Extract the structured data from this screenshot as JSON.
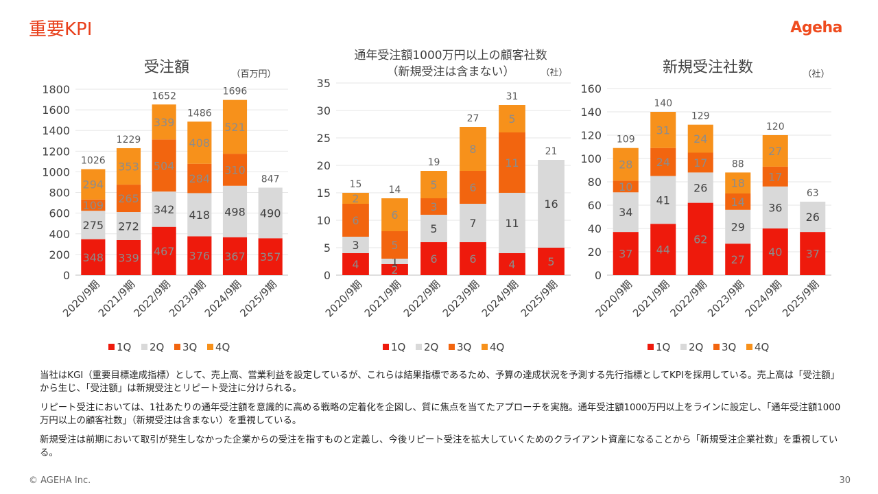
{
  "header": {
    "title": "重要KPI",
    "logo_text": "Ageha"
  },
  "colors": {
    "q1": "#ee1a0c",
    "q2": "#d9d9d9",
    "q3": "#f2650f",
    "q4": "#f7911b",
    "title": "#e8401c"
  },
  "legend": [
    "1Q",
    "2Q",
    "3Q",
    "4Q"
  ],
  "chart_data": [
    {
      "type": "bar",
      "stacked": true,
      "title": "受注額",
      "unit": "（百万円）",
      "categories": [
        "2020/9期",
        "2021/9期",
        "2022/9期",
        "2023/9期",
        "2024/9期",
        "2025/9期"
      ],
      "ylim": [
        0,
        1800
      ],
      "yticks": [
        0,
        200,
        400,
        600,
        800,
        1000,
        1200,
        1400,
        1600,
        1800
      ],
      "series": [
        {
          "name": "1Q",
          "values": [
            348,
            339,
            467,
            376,
            367,
            357
          ]
        },
        {
          "name": "2Q",
          "values": [
            275,
            272,
            342,
            418,
            498,
            490
          ]
        },
        {
          "name": "3Q",
          "values": [
            109,
            265,
            504,
            284,
            310,
            null
          ]
        },
        {
          "name": "4Q",
          "values": [
            294,
            353,
            339,
            408,
            521,
            null
          ]
        }
      ],
      "totals": [
        1026,
        1229,
        1652,
        1486,
        1696,
        847
      ]
    },
    {
      "type": "bar",
      "stacked": true,
      "title": "通年受注額1000万円以上の顧客社数",
      "subtitle": "（新規受注は含まない）",
      "unit": "（社）",
      "categories": [
        "2020/9期",
        "2021/9期",
        "2022/9期",
        "2023/9期",
        "2024/9期",
        "2025/9期"
      ],
      "ylim": [
        0,
        35
      ],
      "yticks": [
        0,
        5,
        10,
        15,
        20,
        25,
        30,
        35
      ],
      "series": [
        {
          "name": "1Q",
          "values": [
            4,
            2,
            6,
            6,
            4,
            5
          ]
        },
        {
          "name": "2Q",
          "values": [
            3,
            1,
            5,
            7,
            11,
            16
          ]
        },
        {
          "name": "3Q",
          "values": [
            6,
            5,
            3,
            6,
            11,
            null
          ]
        },
        {
          "name": "4Q",
          "values": [
            2,
            6,
            5,
            8,
            5,
            null
          ]
        }
      ],
      "totals": [
        15,
        14,
        19,
        27,
        31,
        21
      ]
    },
    {
      "type": "bar",
      "stacked": true,
      "title": "新規受注社数",
      "unit": "（社）",
      "categories": [
        "2020/9期",
        "2021/9期",
        "2022/9期",
        "2023/9期",
        "2024/9期",
        "2025/9期"
      ],
      "ylim": [
        0,
        160
      ],
      "yticks": [
        0,
        20,
        40,
        60,
        80,
        100,
        120,
        140,
        160
      ],
      "series": [
        {
          "name": "1Q",
          "values": [
            37,
            44,
            62,
            27,
            40,
            37
          ]
        },
        {
          "name": "2Q",
          "values": [
            34,
            41,
            26,
            29,
            36,
            26
          ]
        },
        {
          "name": "3Q",
          "values": [
            10,
            24,
            17,
            14,
            17,
            null
          ]
        },
        {
          "name": "4Q",
          "values": [
            28,
            31,
            24,
            18,
            27,
            null
          ]
        }
      ],
      "totals": [
        109,
        140,
        129,
        88,
        120,
        63
      ]
    }
  ],
  "paragraphs": [
    "当社はKGI（重要目標達成指標）として、売上高、営業利益を設定しているが、これらは結果指標であるため、予算の達成状況を予測する先行指標としてKPIを採用している。売上高は「受注額」から生じ、「受注額」は新規受注とリピート受注に分けられる。",
    "リピート受注においては、1社あたりの通年受注額を意識的に高める戦略の定着化を企図し、質に焦点を当てたアプローチを実施。通年受注額1000万円以上をラインに設定し、「通年受注額1000万円以上の顧客社数」（新規受注は含まない）を重視している。",
    "新規受注は前期において取引が発生しなかった企業からの受注を指すものと定義し、今後リピート受注を拡大していくためのクライアント資産になることから「新規受注企業社数」を重視している。"
  ],
  "footer": {
    "copyright": "© AGEHA Inc.",
    "page_number": "30"
  }
}
